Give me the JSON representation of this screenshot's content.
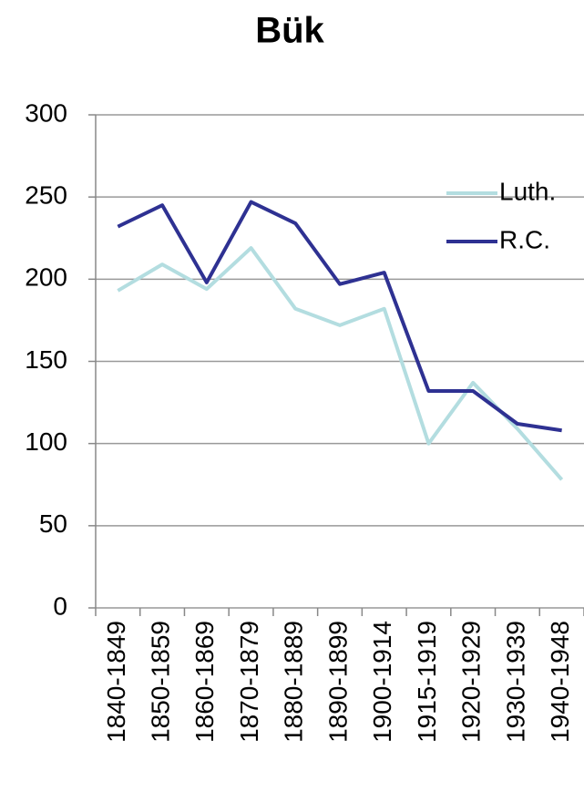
{
  "chart_data": {
    "type": "line",
    "title": "Bük",
    "categories": [
      "1840-1849",
      "1850-1859",
      "1860-1869",
      "1870-1879",
      "1880-1889",
      "1890-1899",
      "1900-1914",
      "1915-1919",
      "1920-1929",
      "1930-1939",
      "1940-1948"
    ],
    "series": [
      {
        "name": "Luth.",
        "color": "#b3dde0",
        "values": [
          193,
          209,
          194,
          219,
          182,
          172,
          182,
          100,
          137,
          109,
          78
        ]
      },
      {
        "name": "R.C.",
        "color": "#2e3192",
        "values": [
          232,
          245,
          198,
          247,
          234,
          197,
          204,
          132,
          132,
          112,
          108
        ]
      }
    ],
    "ylim": [
      0,
      300
    ],
    "yticks": [
      0,
      50,
      100,
      150,
      200,
      250,
      300
    ],
    "grid": true,
    "legend": "right"
  }
}
